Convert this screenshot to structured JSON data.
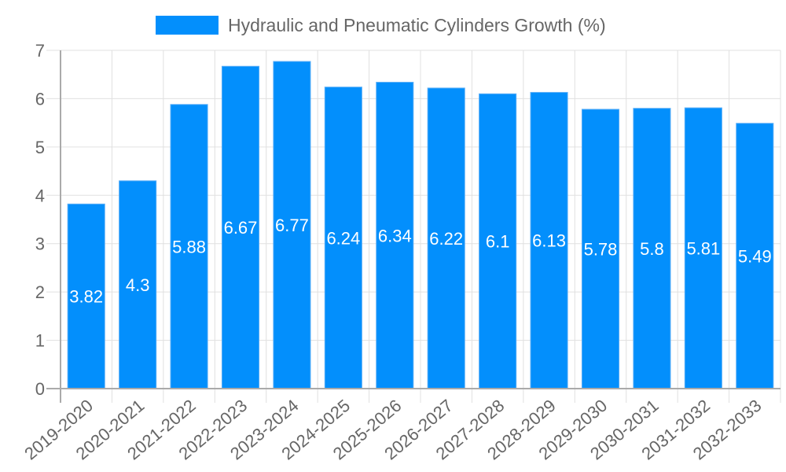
{
  "legend": {
    "label": "Hydraulic and Pneumatic Cylinders Growth (%)",
    "color": "#038ffc"
  },
  "colors": {
    "bar": "#038ffc",
    "bar_border": "#5aaef7",
    "grid": "#e0e0e0",
    "axis": "#aaaaaa",
    "tick_text": "#666666",
    "data_label": "#ffffff"
  },
  "chart_data": {
    "type": "bar",
    "title": "",
    "xlabel": "",
    "ylabel": "",
    "ylim": [
      0,
      7
    ],
    "yticks": [
      0,
      1,
      2,
      3,
      4,
      5,
      6,
      7
    ],
    "grid": true,
    "legend_position": "top",
    "categories": [
      "2019-2020",
      "2020-2021",
      "2021-2022",
      "2022-2023",
      "2023-2024",
      "2024-2025",
      "2025-2026",
      "2026-2027",
      "2027-2028",
      "2028-2029",
      "2029-2030",
      "2030-2031",
      "2031-2032",
      "2032-2033"
    ],
    "series": [
      {
        "name": "Hydraulic and Pneumatic Cylinders Growth (%)",
        "values": [
          3.82,
          4.3,
          5.88,
          6.67,
          6.77,
          6.24,
          6.34,
          6.22,
          6.1,
          6.13,
          5.78,
          5.8,
          5.81,
          5.49
        ]
      }
    ]
  }
}
